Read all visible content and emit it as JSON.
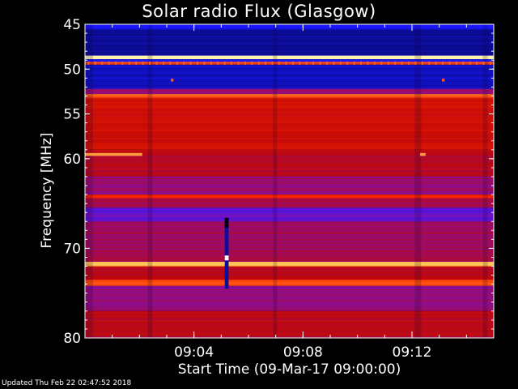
{
  "title": "Solar radio Flux (Glasgow)",
  "footer": "Updated Thu Feb 22 02:47:52 2018",
  "chart_data": {
    "type": "heatmap",
    "title": "Solar radio Flux (Glasgow)",
    "xlabel": "Start Time (09-Mar-17 09:00:00)",
    "ylabel": "Frequency [MHz]",
    "xlim_minutes": [
      0,
      15
    ],
    "ylim": [
      45,
      80
    ],
    "x_ticks": [
      {
        "value": 4,
        "label": "09:04"
      },
      {
        "value": 8,
        "label": "09:08"
      },
      {
        "value": 12,
        "label": "09:12"
      }
    ],
    "y_ticks": [
      {
        "value": 45,
        "label": "45"
      },
      {
        "value": 50,
        "label": "50"
      },
      {
        "value": 55,
        "label": "55"
      },
      {
        "value": 60,
        "label": "60"
      },
      {
        "value": 70,
        "label": "70"
      },
      {
        "value": 80,
        "label": "80"
      }
    ],
    "colormap": [
      "#000000",
      "#0a0a80",
      "#1818ff",
      "#7a10c0",
      "#c00808",
      "#ff2a00",
      "#ff8a2a",
      "#ffe870",
      "#ffffff"
    ],
    "frequency_bands": [
      {
        "from": 45.0,
        "to": 45.6,
        "level": 2
      },
      {
        "from": 45.6,
        "to": 48.5,
        "level": 1.2
      },
      {
        "from": 48.5,
        "to": 48.9,
        "level": 7.5
      },
      {
        "from": 48.9,
        "to": 49.2,
        "level": 2
      },
      {
        "from": 49.2,
        "to": 49.5,
        "level": 5.3
      },
      {
        "from": 49.5,
        "to": 52.2,
        "level": 1.5
      },
      {
        "from": 52.2,
        "to": 52.8,
        "level": 3.5
      },
      {
        "from": 52.8,
        "to": 53.2,
        "level": 5.5
      },
      {
        "from": 53.2,
        "to": 55.5,
        "level": 4.3
      },
      {
        "from": 55.5,
        "to": 59.0,
        "level": 4.2
      },
      {
        "from": 59.0,
        "to": 62.0,
        "level": 3.9
      },
      {
        "from": 62.0,
        "to": 64.0,
        "level": 3.4
      },
      {
        "from": 64.0,
        "to": 64.4,
        "level": 4.8
      },
      {
        "from": 64.4,
        "to": 65.5,
        "level": 3.6
      },
      {
        "from": 65.5,
        "to": 67.0,
        "level": 2.8
      },
      {
        "from": 67.0,
        "to": 71.5,
        "level": 3.6
      },
      {
        "from": 71.5,
        "to": 72.0,
        "level": 6.7
      },
      {
        "from": 72.0,
        "to": 73.5,
        "level": 4.0
      },
      {
        "from": 73.5,
        "to": 74.2,
        "level": 5.3
      },
      {
        "from": 74.2,
        "to": 77.0,
        "level": 3.3
      },
      {
        "from": 77.0,
        "to": 80.0,
        "level": 3.9
      }
    ],
    "features": [
      {
        "name": "interference-line",
        "freq": 59.5,
        "t_start": 0.0,
        "t_end": 2.1,
        "level": 6.2
      },
      {
        "name": "interference-dot",
        "freq": 51.2,
        "t_start": 3.15,
        "t_end": 3.25,
        "level": 5.5
      },
      {
        "name": "interference-dot",
        "freq": 51.2,
        "t_start": 13.1,
        "t_end": 13.2,
        "level": 5.5
      },
      {
        "name": "interference-dot",
        "freq": 59.5,
        "t_start": 12.3,
        "t_end": 12.5,
        "level": 6.2
      },
      {
        "name": "vertical-streak",
        "freq_from": 66.6,
        "freq_to": 74.5,
        "t_start": 5.13,
        "t_end": 5.27,
        "level": 1.2
      }
    ]
  }
}
